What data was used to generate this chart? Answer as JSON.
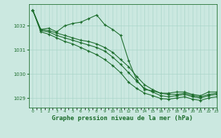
{
  "background_color": "#cbe8e0",
  "grid_color": "#a8d4c8",
  "line_color": "#1a6b2a",
  "xlabel": "Graphe pression niveau de la mer (hPa)",
  "xlabel_fontsize": 6.5,
  "ylim": [
    1028.6,
    1032.9
  ],
  "xlim": [
    -0.5,
    23
  ],
  "yticks": [
    1029,
    1030,
    1031,
    1032
  ],
  "xticks": [
    0,
    1,
    2,
    3,
    4,
    5,
    6,
    7,
    8,
    9,
    10,
    11,
    12,
    13,
    14,
    15,
    16,
    17,
    18,
    19,
    20,
    21,
    22,
    23
  ],
  "series": [
    {
      "x": [
        0,
        1,
        2,
        3,
        4,
        5,
        6,
        7,
        8,
        9,
        10,
        11,
        12,
        13,
        14,
        15,
        16,
        17,
        18,
        19,
        20,
        21,
        22,
        23
      ],
      "y": [
        1032.65,
        1031.85,
        1031.9,
        1031.75,
        1032.0,
        1032.1,
        1032.15,
        1032.3,
        1032.45,
        1032.05,
        1031.85,
        1031.6,
        1030.55,
        1029.75,
        1029.35,
        1029.3,
        1029.2,
        1029.2,
        1029.25,
        1029.25,
        1029.15,
        1029.1,
        1029.25,
        1029.25
      ]
    },
    {
      "x": [
        0,
        1,
        2,
        3,
        4,
        5,
        6,
        7,
        8,
        9,
        10,
        11,
        12,
        13,
        14,
        15,
        16,
        17,
        18,
        19,
        20,
        21,
        22,
        23
      ],
      "y": [
        1032.65,
        1031.85,
        1031.8,
        1031.7,
        1031.6,
        1031.5,
        1031.4,
        1031.35,
        1031.25,
        1031.1,
        1030.9,
        1030.6,
        1030.3,
        1029.9,
        1029.55,
        1029.35,
        1029.2,
        1029.15,
        1029.15,
        1029.2,
        1029.1,
        1029.05,
        1029.15,
        1029.2
      ]
    },
    {
      "x": [
        0,
        1,
        2,
        3,
        4,
        5,
        6,
        7,
        8,
        9,
        10,
        11,
        12,
        13,
        14,
        15,
        16,
        17,
        18,
        19,
        20,
        21,
        22,
        23
      ],
      "y": [
        1032.65,
        1031.8,
        1031.75,
        1031.6,
        1031.5,
        1031.4,
        1031.3,
        1031.2,
        1031.1,
        1030.95,
        1030.7,
        1030.4,
        1030.05,
        1029.7,
        1029.4,
        1029.25,
        1029.1,
        1029.05,
        1029.1,
        1029.15,
        1029.05,
        1029.0,
        1029.1,
        1029.15
      ]
    },
    {
      "x": [
        0,
        1,
        2,
        3,
        4,
        5,
        6,
        7,
        8,
        9,
        10,
        11,
        12,
        13,
        14,
        15,
        16,
        17,
        18,
        19,
        20,
        21,
        22,
        23
      ],
      "y": [
        1032.65,
        1031.75,
        1031.65,
        1031.5,
        1031.35,
        1031.25,
        1031.1,
        1030.95,
        1030.8,
        1030.6,
        1030.35,
        1030.05,
        1029.65,
        1029.4,
        1029.2,
        1029.1,
        1028.98,
        1028.95,
        1029.0,
        1029.05,
        1028.95,
        1028.9,
        1029.0,
        1029.05
      ]
    }
  ]
}
